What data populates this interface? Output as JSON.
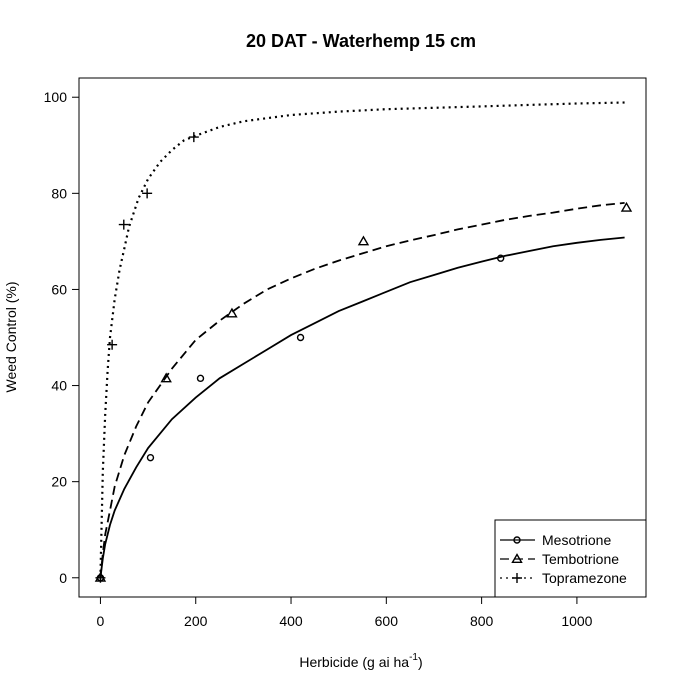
{
  "chart_data": {
    "type": "scatter",
    "title": "20 DAT - Waterhemp 15 cm",
    "xlabel": "Herbicide (g ai ha",
    "xlabel_superscript": "-1",
    "xlabel_suffix": ")",
    "ylabel": "Weed Control (%)",
    "xlim": [
      -45,
      1145
    ],
    "ylim": [
      -4,
      104
    ],
    "x_ticks": [
      0,
      200,
      400,
      600,
      800,
      1000
    ],
    "y_ticks": [
      0,
      20,
      40,
      60,
      80,
      100
    ],
    "grid": false,
    "legend_position": "bottom-right",
    "series": [
      {
        "name": "Mesotrione",
        "marker": "circle",
        "line_style": "solid",
        "points": [
          [
            0,
            0
          ],
          [
            105,
            25
          ],
          [
            210,
            41.5
          ],
          [
            420,
            50
          ],
          [
            840,
            66.5
          ]
        ],
        "curve": [
          [
            0,
            0
          ],
          [
            5,
            4
          ],
          [
            10,
            7
          ],
          [
            20,
            11
          ],
          [
            30,
            14
          ],
          [
            50,
            18.5
          ],
          [
            75,
            23
          ],
          [
            100,
            27
          ],
          [
            150,
            33
          ],
          [
            200,
            37.5
          ],
          [
            250,
            41.5
          ],
          [
            300,
            44.5
          ],
          [
            350,
            47.5
          ],
          [
            400,
            50.5
          ],
          [
            450,
            53
          ],
          [
            500,
            55.5
          ],
          [
            550,
            57.5
          ],
          [
            600,
            59.5
          ],
          [
            650,
            61.5
          ],
          [
            700,
            63
          ],
          [
            750,
            64.5
          ],
          [
            800,
            65.8
          ],
          [
            850,
            67
          ],
          [
            900,
            68
          ],
          [
            950,
            69
          ],
          [
            1000,
            69.7
          ],
          [
            1050,
            70.3
          ],
          [
            1100,
            70.8
          ]
        ]
      },
      {
        "name": "Tembotrione",
        "marker": "triangle",
        "line_style": "dashed",
        "points": [
          [
            0,
            0
          ],
          [
            138,
            41.5
          ],
          [
            276,
            55
          ],
          [
            552,
            70
          ],
          [
            1104,
            77
          ]
        ],
        "curve": [
          [
            0,
            0
          ],
          [
            5,
            5
          ],
          [
            10,
            9
          ],
          [
            20,
            14
          ],
          [
            30,
            19
          ],
          [
            50,
            25.5
          ],
          [
            75,
            31.5
          ],
          [
            100,
            36.5
          ],
          [
            150,
            43.5
          ],
          [
            200,
            49.5
          ],
          [
            250,
            53.5
          ],
          [
            300,
            57
          ],
          [
            350,
            60
          ],
          [
            400,
            62.3
          ],
          [
            450,
            64.3
          ],
          [
            500,
            66
          ],
          [
            550,
            67.5
          ],
          [
            600,
            69
          ],
          [
            650,
            70.2
          ],
          [
            700,
            71.3
          ],
          [
            750,
            72.5
          ],
          [
            800,
            73.5
          ],
          [
            850,
            74.5
          ],
          [
            900,
            75.3
          ],
          [
            950,
            76
          ],
          [
            1000,
            76.8
          ],
          [
            1050,
            77.5
          ],
          [
            1100,
            78
          ]
        ]
      },
      {
        "name": "Topramezone",
        "marker": "plus",
        "line_style": "dotted",
        "points": [
          [
            0,
            0
          ],
          [
            24.5,
            48.5
          ],
          [
            49,
            73.5
          ],
          [
            98,
            80
          ],
          [
            196,
            91.7
          ]
        ],
        "curve": [
          [
            0,
            0
          ],
          [
            5,
            22
          ],
          [
            10,
            34
          ],
          [
            15,
            43
          ],
          [
            20,
            50
          ],
          [
            30,
            58
          ],
          [
            40,
            64
          ],
          [
            50,
            68.5
          ],
          [
            60,
            73
          ],
          [
            80,
            79
          ],
          [
            100,
            83
          ],
          [
            125,
            86.5
          ],
          [
            150,
            89
          ],
          [
            175,
            91
          ],
          [
            200,
            92
          ],
          [
            250,
            93.8
          ],
          [
            300,
            95
          ],
          [
            400,
            96.3
          ],
          [
            500,
            97
          ],
          [
            600,
            97.5
          ],
          [
            700,
            97.8
          ],
          [
            800,
            98.1
          ],
          [
            900,
            98.4
          ],
          [
            1000,
            98.7
          ],
          [
            1100,
            98.9
          ]
        ]
      }
    ]
  }
}
